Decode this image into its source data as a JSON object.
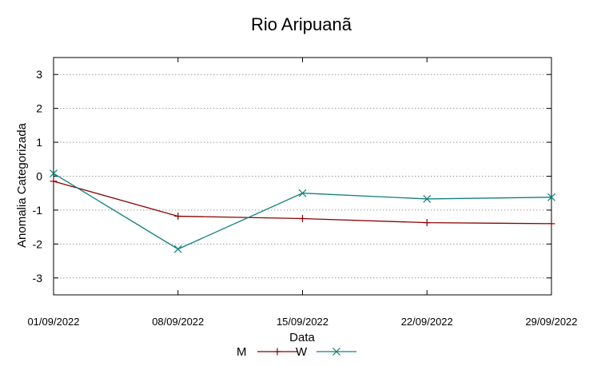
{
  "chart_data": {
    "type": "line",
    "title": "Rio Aripuanã",
    "xlabel": "Data",
    "ylabel": "Anomalia Categorizada",
    "categories": [
      "01/09/2022",
      "08/09/2022",
      "15/09/2022",
      "22/09/2022",
      "29/09/2022"
    ],
    "ylim": [
      -3.5,
      3.5
    ],
    "yticks": [
      3,
      2,
      1,
      0,
      -1,
      -2,
      -3
    ],
    "ytick_labels": [
      "3",
      "2",
      "1",
      "0",
      "-1",
      "-2",
      "-3"
    ],
    "grid": true,
    "legend_position": "bottom-center",
    "series": [
      {
        "name": "M",
        "marker": "+",
        "color": "#8b0000",
        "values": [
          -0.15,
          -1.18,
          -1.25,
          -1.37,
          -1.4
        ]
      },
      {
        "name": "W",
        "marker": "x",
        "color": "#127f7f",
        "values": [
          0.08,
          -2.15,
          -0.5,
          -0.67,
          -0.62
        ]
      }
    ]
  }
}
